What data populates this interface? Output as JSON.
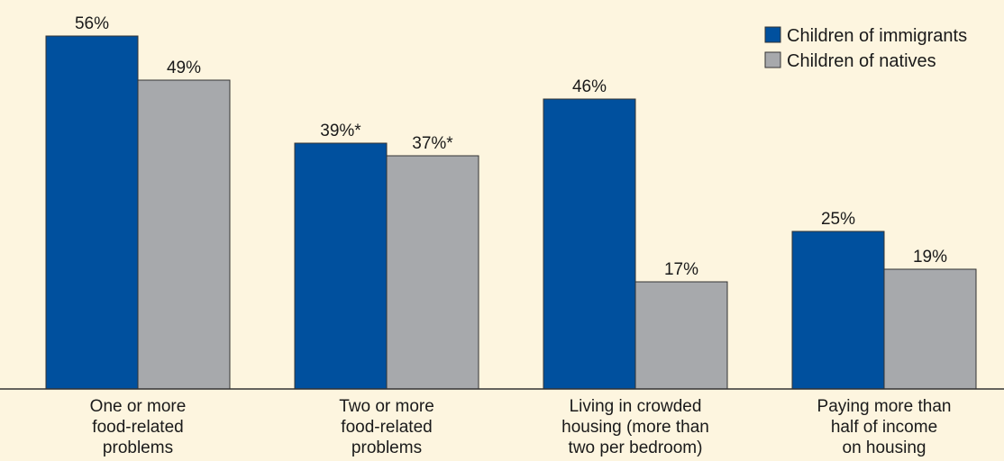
{
  "chart_data": {
    "type": "bar",
    "categories": [
      [
        "One or more",
        "food-related",
        "problems"
      ],
      [
        "Two or more",
        "food-related",
        "problems"
      ],
      [
        "Living in crowded",
        "housing (more than",
        "two per bedroom)"
      ],
      [
        "Paying more than",
        "half of income",
        "on housing"
      ]
    ],
    "series": [
      {
        "name": "Children of immigrants",
        "color": "#00509e",
        "values": [
          56,
          39,
          46,
          25
        ],
        "labels": [
          "56%",
          "39%*",
          "46%",
          "25%"
        ]
      },
      {
        "name": "Children of natives",
        "color": "#a7a9ac",
        "values": [
          49,
          37,
          17,
          19
        ],
        "labels": [
          "49%",
          "37%*",
          "17%",
          "19%"
        ]
      }
    ],
    "ylim": [
      0,
      60
    ],
    "grid": false,
    "legend_position": "top-right",
    "background": "#fdf5df"
  }
}
